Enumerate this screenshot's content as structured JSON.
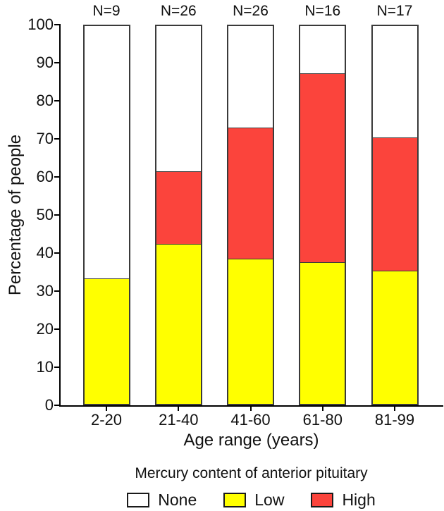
{
  "chart_data": {
    "type": "bar",
    "stacked": true,
    "title": "",
    "xlabel": "Age range (years)",
    "ylabel": "Percentage of people",
    "ylim": [
      0,
      100
    ],
    "yticks": [
      0,
      10,
      20,
      30,
      40,
      50,
      60,
      70,
      80,
      90,
      100
    ],
    "grid": false,
    "legend_position": "bottom",
    "categories": [
      "2-20",
      "21-40",
      "41-60",
      "61-80",
      "81-99"
    ],
    "bar_top_labels": [
      "N=9",
      "N=26",
      "N=26",
      "N=16",
      "N=17"
    ],
    "series": [
      {
        "name": "Low",
        "color": "#FFFF00",
        "values": [
          33.3,
          42.3,
          38.5,
          37.5,
          35.3
        ]
      },
      {
        "name": "High",
        "color": "#FB443C",
        "values": [
          0.0,
          19.2,
          34.6,
          50.0,
          35.3
        ]
      },
      {
        "name": "None",
        "color": "#FFFFFF",
        "values": [
          66.7,
          38.5,
          26.9,
          12.5,
          29.4
        ]
      }
    ]
  },
  "legend": {
    "title": "Mercury content of anterior pituitary",
    "items": [
      {
        "label": "None",
        "color": "#FFFFFF"
      },
      {
        "label": "Low",
        "color": "#FFFF00"
      },
      {
        "label": "High",
        "color": "#FB443C"
      }
    ]
  },
  "colors": {
    "background": "#FFFFFF",
    "axis": "#000000",
    "bar_border": "#3A3A3A",
    "text": "#111111"
  }
}
